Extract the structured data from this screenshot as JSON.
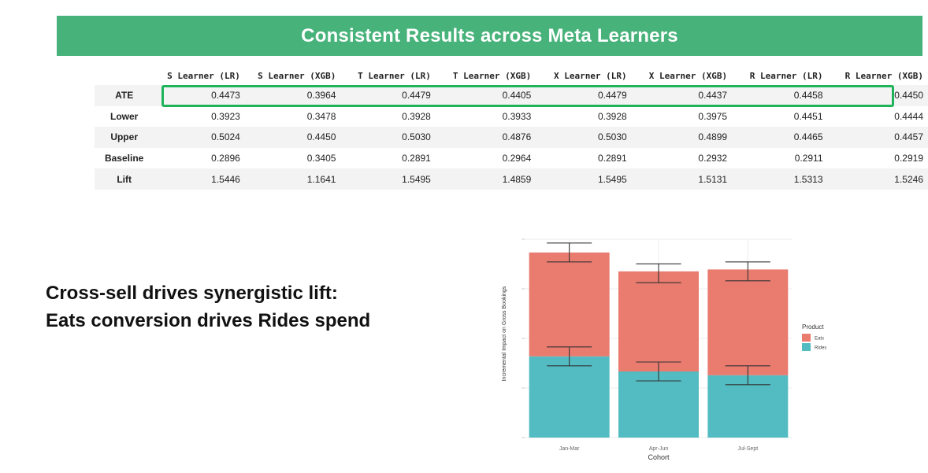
{
  "banner": {
    "title": "Consistent Results across Meta Learners"
  },
  "table": {
    "columns": [
      "S Learner (LR)",
      "S Learner (XGB)",
      "T Learner (LR)",
      "T Learner (XGB)",
      "X Learner (LR)",
      "X Learner (XGB)",
      "R Learner (LR)",
      "R Learner (XGB)"
    ],
    "rows": [
      {
        "label": "ATE",
        "values": [
          "0.4473",
          "0.3964",
          "0.4479",
          "0.4405",
          "0.4479",
          "0.4437",
          "0.4458",
          "0.4450"
        ]
      },
      {
        "label": "Lower",
        "values": [
          "0.3923",
          "0.3478",
          "0.3928",
          "0.3933",
          "0.3928",
          "0.3975",
          "0.4451",
          "0.4444"
        ]
      },
      {
        "label": "Upper",
        "values": [
          "0.5024",
          "0.4450",
          "0.5030",
          "0.4876",
          "0.5030",
          "0.4899",
          "0.4465",
          "0.4457"
        ]
      },
      {
        "label": "Baseline",
        "values": [
          "0.2896",
          "0.3405",
          "0.2891",
          "0.2964",
          "0.2891",
          "0.2932",
          "0.2911",
          "0.2919"
        ]
      },
      {
        "label": "Lift",
        "values": [
          "1.5446",
          "1.1641",
          "1.5495",
          "1.4859",
          "1.5495",
          "1.5131",
          "1.5313",
          "1.5246"
        ]
      }
    ],
    "highlight_color": "#1fb45a"
  },
  "headline": {
    "line1": "Cross-sell drives synergistic lift:",
    "line2": "Eats conversion drives Rides spend"
  },
  "chart_data": {
    "type": "bar",
    "stacked": true,
    "xlabel": "Cohort",
    "ylabel": "Incremental Impact on Gross Bookings",
    "categories": [
      "Jan-Mar",
      "Apr-Jun",
      "Jul-Sept"
    ],
    "series": [
      {
        "name": "Rides",
        "color": "#52bcc2",
        "values": [
          0.43,
          0.35,
          0.33
        ],
        "err_low": [
          0.38,
          0.3,
          0.28
        ],
        "err_high": [
          0.48,
          0.4,
          0.38
        ]
      },
      {
        "name": "Eats",
        "color": "#e97b6f",
        "values": [
          0.55,
          0.53,
          0.56
        ],
        "err_low": [
          0.93,
          0.82,
          0.83
        ],
        "err_high": [
          1.03,
          0.92,
          0.93
        ]
      }
    ],
    "ylim": [
      0,
      1.05
    ],
    "legend": {
      "title": "Product",
      "position": "right"
    },
    "grid": true
  }
}
